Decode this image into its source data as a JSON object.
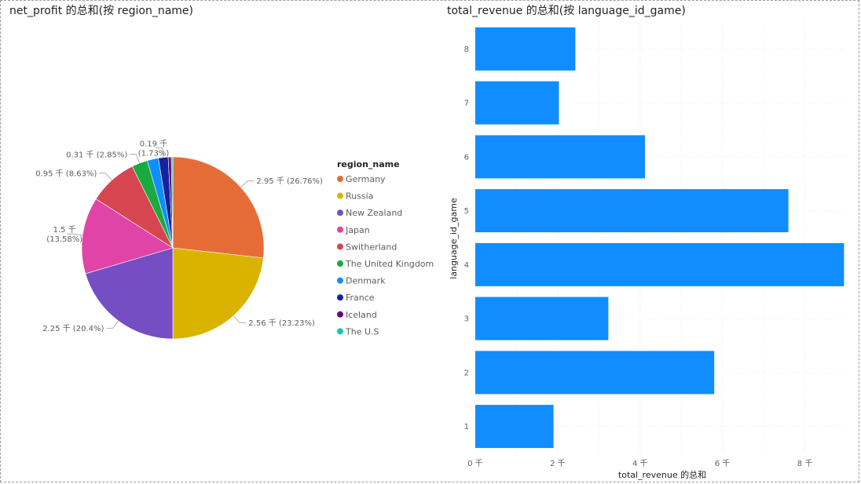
{
  "chart_data": [
    {
      "type": "pie",
      "title": "net_profit 的总和(按 region_name)",
      "legend_title": "region_name",
      "legend_position": "right",
      "categories": [
        "Germany",
        "Russia",
        "New Zealand",
        "Japan",
        "Switherland",
        "The United Kingdom",
        "Denmark",
        "France",
        "Iceland",
        "The U.S"
      ],
      "values": [
        2.95,
        2.56,
        2.25,
        1.5,
        0.95,
        0.31,
        0.22,
        0.19,
        0.06,
        0.03
      ],
      "percents": [
        26.76,
        23.23,
        20.4,
        13.58,
        8.63,
        2.85,
        2.0,
        1.73,
        0.5,
        0.3
      ],
      "colors": [
        "#e66c37",
        "#d9b300",
        "#744ec2",
        "#e044a7",
        "#d64550",
        "#1aab40",
        "#118dff",
        "#12239e",
        "#6b007b",
        "#15c6b5"
      ],
      "data_labels": [
        {
          "index": 0,
          "text": "2.95 千 (26.76%)"
        },
        {
          "index": 1,
          "text": "2.56 千 (23.23%)"
        },
        {
          "index": 2,
          "text": "2.25 千 (20.4%)"
        },
        {
          "index": 3,
          "line1": "1.5 千",
          "line2": "(13.58%)"
        },
        {
          "index": 4,
          "text": "0.95 千 (8.63%)"
        },
        {
          "index": 5,
          "text": "0.31 千 (2.85%)"
        },
        {
          "index": 7,
          "line1": "0.19 千",
          "line2": "(1.73%)"
        }
      ]
    },
    {
      "type": "bar",
      "orientation": "horizontal",
      "title": "total_revenue 的总和(按 language_id_game)",
      "xlabel": "total_revenue 的总和",
      "ylabel": "language_id_game",
      "categories": [
        "8",
        "7",
        "6",
        "5",
        "4",
        "3",
        "2",
        "1"
      ],
      "values": [
        2.43,
        2.03,
        4.12,
        7.6,
        8.95,
        3.23,
        5.8,
        1.9
      ],
      "xlim": [
        0,
        9.0
      ],
      "xticks": [
        0,
        2,
        4,
        6,
        8
      ],
      "xtick_labels": [
        "0 千",
        "2 千",
        "4 千",
        "6 千",
        "8 千"
      ],
      "bar_color": "#118dff",
      "grid": true
    }
  ]
}
